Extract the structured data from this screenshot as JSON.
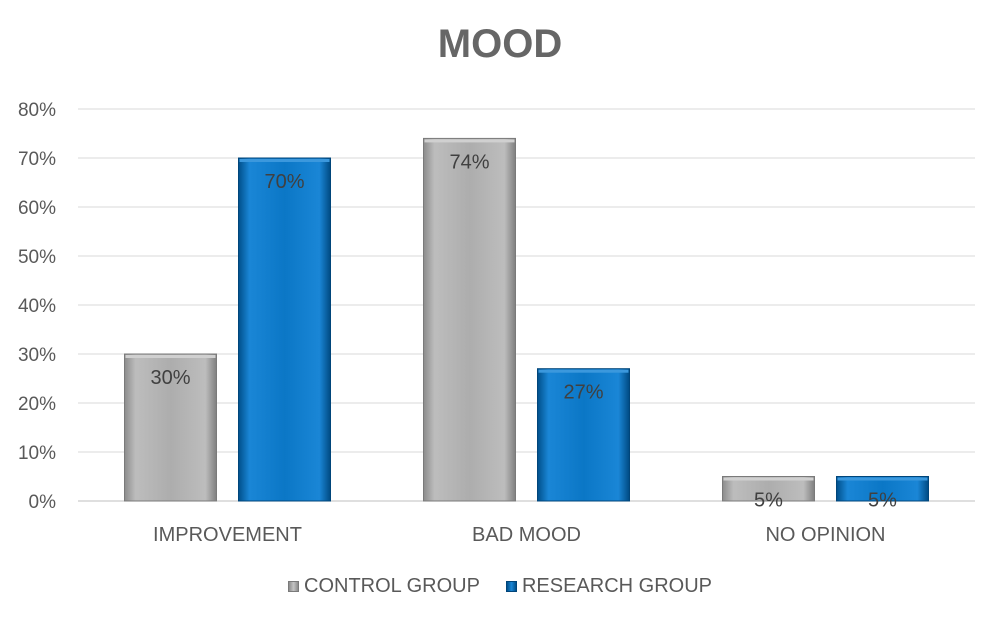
{
  "chart_data": {
    "type": "bar",
    "title": "MOOD",
    "categories": [
      "IMPROVEMENT",
      "BAD MOOD",
      "NO OPINION"
    ],
    "series": [
      {
        "name": "CONTROL GROUP",
        "values": [
          30,
          74,
          5
        ],
        "labels": [
          "30%",
          "74%",
          "5%"
        ],
        "color": "#a6a6a6"
      },
      {
        "name": "RESEARCH GROUP",
        "values": [
          70,
          27,
          5
        ],
        "labels": [
          "70%",
          "27%",
          "5%"
        ],
        "color": "#0070c0"
      }
    ],
    "ylim": [
      0,
      80
    ],
    "yticks": [
      0,
      10,
      20,
      30,
      40,
      50,
      60,
      70,
      80
    ],
    "ytick_labels": [
      "0%",
      "10%",
      "20%",
      "30%",
      "40%",
      "50%",
      "60%",
      "70%",
      "80%"
    ],
    "grid": true,
    "legend": "bottom"
  }
}
